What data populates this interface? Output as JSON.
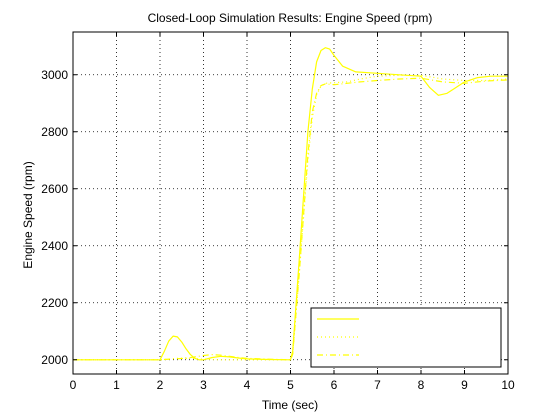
{
  "chart_data": {
    "type": "line",
    "title": "Closed-Loop Simulation Results: Engine Speed (rpm)",
    "xlabel": "Time (sec)",
    "ylabel": "Engine Speed (rpm)",
    "xlim": [
      0,
      10
    ],
    "ylim": [
      1950,
      3150
    ],
    "x_ticks": [
      0,
      1,
      2,
      3,
      4,
      5,
      6,
      7,
      8,
      9,
      10
    ],
    "y_ticks": [
      2000,
      2200,
      2400,
      2600,
      2800,
      3000
    ],
    "grid": "dotted",
    "legend_position": "bottom-right",
    "series": [
      {
        "color": "#ffff00",
        "style": "solid",
        "x": [
          0,
          2.0,
          2.1,
          2.2,
          2.3,
          2.4,
          2.5,
          2.6,
          2.7,
          2.8,
          2.9,
          3.0,
          3.2,
          3.4,
          3.6,
          3.8,
          4.0,
          4.5,
          5.0,
          5.05,
          5.2,
          5.4,
          5.5,
          5.6,
          5.7,
          5.8,
          5.9,
          6.0,
          6.2,
          6.5,
          7.0,
          7.5,
          8.0,
          8.2,
          8.4,
          8.6,
          8.8,
          9.0,
          9.3,
          9.6,
          10.0
        ],
        "y": [
          2000,
          2000,
          2030,
          2065,
          2083,
          2080,
          2062,
          2038,
          2018,
          2005,
          2000,
          2000,
          2008,
          2012,
          2010,
          2006,
          2003,
          2001,
          2000,
          2030,
          2350,
          2800,
          2950,
          3045,
          3085,
          3095,
          3090,
          3068,
          3030,
          3010,
          3005,
          3000,
          2995,
          2955,
          2928,
          2935,
          2955,
          2975,
          2990,
          2995,
          2995
        ]
      },
      {
        "color": "#ffff00",
        "style": "dotted",
        "x": [
          0,
          2.0,
          2.2,
          2.4,
          2.6,
          2.8,
          3.0,
          3.2,
          3.4,
          3.6,
          3.8,
          4.0,
          5.0,
          5.05,
          5.2,
          5.4,
          5.5,
          5.6,
          5.7,
          5.8,
          6.0,
          6.3,
          6.6,
          7.0,
          7.5,
          8.0,
          8.5,
          9.0,
          9.5,
          10.0
        ],
        "y": [
          2000,
          2000,
          2002,
          2005,
          2006,
          2004,
          2002,
          2001,
          2000,
          2000,
          2000,
          2000,
          2000,
          2020,
          2300,
          2700,
          2850,
          2930,
          2960,
          2970,
          2972,
          2975,
          2985,
          2995,
          2998,
          2998,
          2985,
          2980,
          2980,
          2985
        ]
      },
      {
        "color": "#ffff00",
        "style": "dashdot",
        "x": [
          0,
          2.0,
          2.3,
          2.6,
          2.8,
          3.0,
          3.2,
          3.4,
          3.6,
          3.8,
          4.0,
          4.5,
          5.0,
          5.05,
          5.2,
          5.4,
          5.5,
          5.6,
          5.7,
          5.8,
          6.0,
          6.3,
          6.6,
          7.0,
          7.5,
          8.0,
          8.5,
          9.0,
          9.5,
          10.0
        ],
        "y": [
          2000,
          2000,
          2003,
          2005,
          2010,
          2015,
          2018,
          2016,
          2012,
          2008,
          2005,
          2002,
          2000,
          2020,
          2300,
          2720,
          2870,
          2935,
          2962,
          2968,
          2965,
          2970,
          2975,
          2980,
          2985,
          2988,
          2975,
          2970,
          2978,
          2982
        ]
      }
    ],
    "legend_entries": [
      "",
      "",
      ""
    ]
  }
}
